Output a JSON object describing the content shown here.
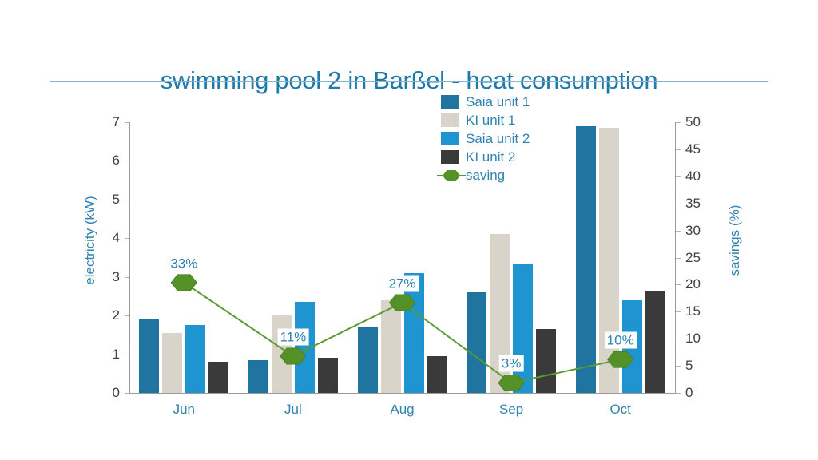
{
  "title": "swimming pool 2 in Barßel - heat consumption",
  "colors": {
    "saia1": "#1f74a0",
    "ki1": "#d8d4c9",
    "saia2": "#1e95d1",
    "ki2": "#3a3a3a",
    "saving_line": "#5a9a2e",
    "saving_marker": "#549127",
    "saving_marker_edge": "#47821f",
    "title_text": "#1f7aac",
    "teal_text": "#2e83b0",
    "tick_text": "#404040",
    "axis_line": "#9b9b9b",
    "tick_mark": "#b4b4b4",
    "underline": "#86b3cd",
    "background": "#ffffff"
  },
  "chart_data": {
    "type": "bar",
    "title": "swimming pool 2 in Barßel - heat consumption",
    "categories": [
      "Jun",
      "Jul",
      "Aug",
      "Sep",
      "Oct"
    ],
    "series": [
      {
        "name": "Saia unit 1",
        "type": "bar",
        "axis": "left",
        "color_key": "saia1",
        "values": [
          1.9,
          0.85,
          1.7,
          2.6,
          6.9
        ]
      },
      {
        "name": "KI unit 1",
        "type": "bar",
        "axis": "left",
        "color_key": "ki1",
        "values": [
          1.55,
          2.0,
          2.4,
          4.1,
          6.85
        ]
      },
      {
        "name": "Saia unit 2",
        "type": "bar",
        "axis": "left",
        "color_key": "saia2",
        "values": [
          1.75,
          2.35,
          3.1,
          3.35,
          2.4
        ]
      },
      {
        "name": "KI unit 2",
        "type": "bar",
        "axis": "left",
        "color_key": "ki2",
        "values": [
          0.8,
          0.9,
          0.95,
          1.65,
          2.65
        ]
      },
      {
        "name": "saving",
        "type": "line",
        "axis": "right",
        "color_key": "saving_line",
        "values": [
          33,
          11,
          27,
          3,
          10
        ],
        "point_labels": [
          "33%",
          "11%",
          "27%",
          "3%",
          "10%"
        ]
      }
    ],
    "left_axis": {
      "label": "electricity (kW)",
      "min": 0,
      "max": 7,
      "step": 1,
      "ticks": [
        0,
        1,
        2,
        3,
        4,
        5,
        6,
        7
      ]
    },
    "right_axis": {
      "label": "savings (%)",
      "min": 0,
      "max": 50,
      "step": 5,
      "ticks": [
        0,
        5,
        10,
        15,
        20,
        25,
        30,
        35,
        40,
        45,
        50
      ]
    },
    "layout": {
      "legend_position": "top-center",
      "grid": false,
      "line_plot_max": 81,
      "marker_shape": "hexagon",
      "point_label_offset_y": -24
    }
  }
}
